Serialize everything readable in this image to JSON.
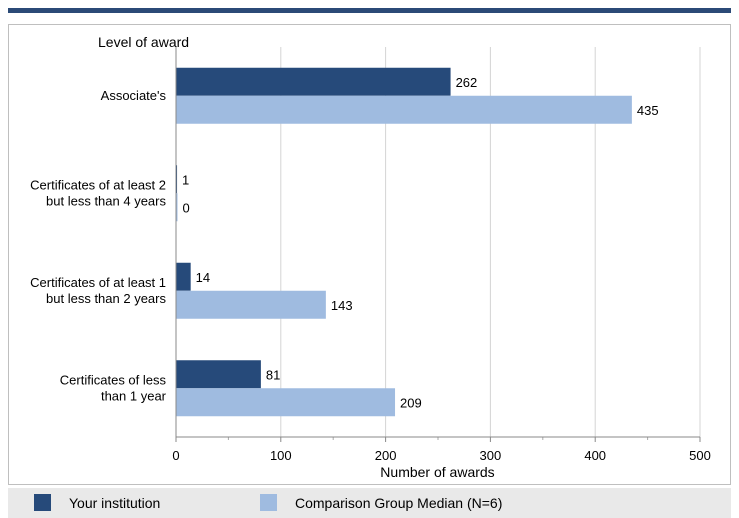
{
  "chart_data": {
    "type": "bar",
    "orientation": "horizontal",
    "title": "Level of award",
    "xlabel": "Number of awards",
    "categories": [
      "Associate's",
      "Certificates of at least 2 but less than 4 years",
      "Certificates of at least 1 but  less than 2 years",
      "Certificates of less than 1 year"
    ],
    "category_lines": [
      [
        "Associate's"
      ],
      [
        "Certificates of at least 2",
        "but less than 4 years"
      ],
      [
        "Certificates of at least 1",
        "but  less than 2 years"
      ],
      [
        "Certificates of less",
        "than 1 year"
      ]
    ],
    "series": [
      {
        "name": "Your institution",
        "values": [
          262,
          1,
          14,
          81
        ],
        "color": "#264a7a"
      },
      {
        "name": "Comparison Group Median (N=6)",
        "values": [
          435,
          0,
          143,
          209
        ],
        "color": "#9fbbe0"
      }
    ],
    "xlim": [
      0,
      500
    ],
    "xticks": [
      0,
      100,
      200,
      300,
      400,
      500
    ],
    "grid": true,
    "legend_position": "bottom"
  },
  "legend": {
    "items": [
      {
        "label": "Your institution",
        "color": "#264a7a"
      },
      {
        "label": "Comparison Group Median (N=6)",
        "color": "#9fbbe0"
      }
    ]
  }
}
